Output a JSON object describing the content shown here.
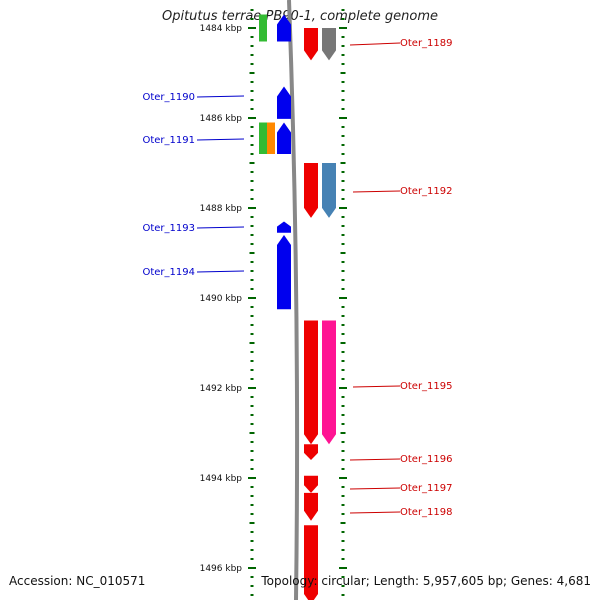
{
  "title": "Opitutus terrae PB90-1, complete genome",
  "footer": {
    "accession": "Accession: NC_010571",
    "summary": "Topology: circular; Length: 5,957,605 bp; Genes: 4,681"
  },
  "colors": {
    "reverse_strand": "#0000ee",
    "forward_strand": "#ee0000",
    "left_label": "#0000cc",
    "right_label": "#cc0000",
    "tick": "#006600",
    "backbone": "#888888"
  },
  "ticks": [
    {
      "kbp": 1484,
      "label": "1484 kbp"
    },
    {
      "kbp": 1486,
      "label": "1486 kbp"
    },
    {
      "kbp": 1488,
      "label": "1488 kbp"
    },
    {
      "kbp": 1490,
      "label": "1490 kbp"
    },
    {
      "kbp": 1492,
      "label": "1492 kbp"
    },
    {
      "kbp": 1494,
      "label": "1494 kbp"
    },
    {
      "kbp": 1496,
      "label": "1496 kbp"
    }
  ],
  "genes_reverse": [
    {
      "start": 1485.3,
      "end": 1486.02,
      "label": "Oter_1190"
    },
    {
      "start": 1486.1,
      "end": 1486.8,
      "label": "Oter_1191"
    },
    {
      "start": 1488.3,
      "end": 1488.55,
      "label": "Oter_1193"
    },
    {
      "start": 1488.6,
      "end": 1490.25,
      "label": "Oter_1194"
    },
    {
      "start": 1483.7,
      "end": 1484.3,
      "label": ""
    }
  ],
  "genes_forward": [
    {
      "start": 1484.0,
      "end": 1484.72,
      "label": "Oter_1189"
    },
    {
      "start": 1487.0,
      "end": 1488.22,
      "label": "Oter_1192"
    },
    {
      "start": 1490.5,
      "end": 1493.25,
      "label": "Oter_1195"
    },
    {
      "start": 1493.25,
      "end": 1493.6,
      "label": "Oter_1196"
    },
    {
      "start": 1493.95,
      "end": 1494.33,
      "label": "Oter_1197"
    },
    {
      "start": 1494.33,
      "end": 1494.95,
      "label": "Oter_1198"
    },
    {
      "start": 1495.05,
      "end": 1496.8,
      "label": ""
    }
  ],
  "cogs_left": [
    {
      "start": 1483.7,
      "end": 1484.3,
      "color": "#33bb33"
    },
    {
      "start": 1486.1,
      "end": 1486.8,
      "color": "#33bb33"
    },
    {
      "start": 1486.1,
      "end": 1486.8,
      "color": "#ff8800"
    }
  ],
  "cogs_right": [
    {
      "start": 1484.0,
      "end": 1484.72,
      "color": "#777777"
    },
    {
      "start": 1487.0,
      "end": 1488.22,
      "color": "#4682b4"
    },
    {
      "start": 1490.5,
      "end": 1493.25,
      "color": "#ff1493"
    }
  ]
}
